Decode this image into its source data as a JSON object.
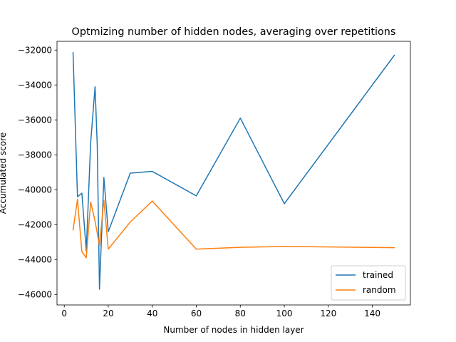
{
  "chart_data": {
    "type": "line",
    "title": "Optmizing number of hidden nodes, averaging over repetitions",
    "xlabel": "Number of nodes in hidden layer",
    "ylabel": "Accumulated score",
    "xlim": [
      -3.3,
      157.3
    ],
    "ylim": [
      -46600,
      -31500
    ],
    "xticks": [
      0,
      20,
      40,
      60,
      80,
      100,
      120,
      140
    ],
    "xtick_labels": [
      "0",
      "20",
      "40",
      "60",
      "80",
      "100",
      "120",
      "140"
    ],
    "yticks": [
      -46000,
      -44000,
      -42000,
      -40000,
      -38000,
      -36000,
      -34000,
      -32000
    ],
    "ytick_labels": [
      "−46000",
      "−44000",
      "−42000",
      "−40000",
      "−38000",
      "−36000",
      "−34000",
      "−32000"
    ],
    "grid": false,
    "legend_position": "lower-right",
    "series": [
      {
        "name": "trained",
        "color": "#1f77b4",
        "x": [
          4,
          6,
          8,
          10,
          12,
          14,
          15,
          16,
          18,
          20,
          30,
          40,
          60,
          80,
          100,
          150
        ],
        "y": [
          -32150,
          -40400,
          -40200,
          -43500,
          -37300,
          -34100,
          -37500,
          -45700,
          -39300,
          -42400,
          -39050,
          -38950,
          -40350,
          -35900,
          -40800,
          -32300
        ]
      },
      {
        "name": "random",
        "color": "#ff7f0e",
        "x": [
          4,
          6,
          8,
          10,
          12,
          14,
          16,
          18,
          20,
          30,
          40,
          60,
          80,
          100,
          150
        ],
        "y": [
          -42300,
          -40550,
          -43550,
          -43900,
          -40700,
          -41800,
          -43200,
          -40600,
          -43400,
          -41850,
          -40650,
          -43400,
          -43300,
          -43250,
          -43320
        ]
      }
    ]
  }
}
